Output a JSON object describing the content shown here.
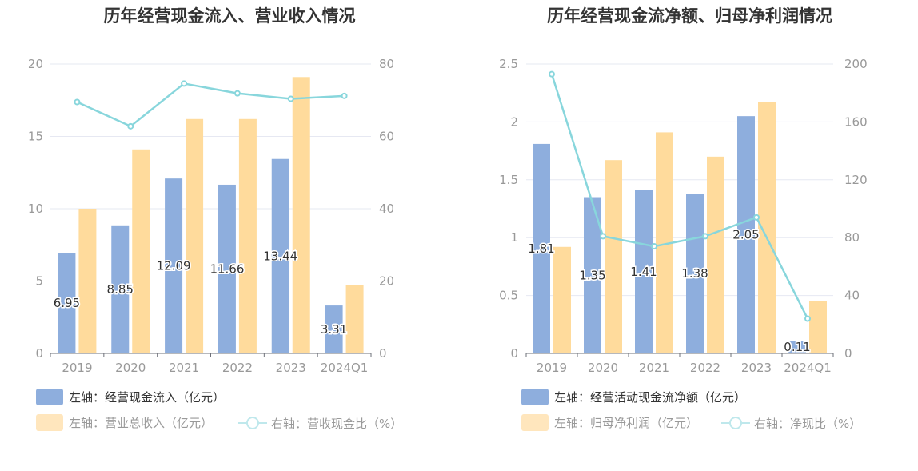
{
  "chart_data": [
    {
      "type": "bar+line",
      "title": "历年经营现金流入、营业收入情况",
      "categories": [
        "2019",
        "2020",
        "2021",
        "2022",
        "2023",
        "2024Q1"
      ],
      "y_left": {
        "min": 0,
        "max": 20,
        "ticks": [
          "0",
          "5",
          "10",
          "15",
          "20"
        ]
      },
      "y_right": {
        "min": 0,
        "max": 80,
        "ticks": [
          "0",
          "20",
          "40",
          "60",
          "80"
        ]
      },
      "series": [
        {
          "name": "左轴：经营现金流入（亿元）",
          "axis": "left",
          "kind": "bar",
          "color": "#8eaedd",
          "values": [
            6.95,
            8.85,
            12.09,
            11.66,
            13.44,
            3.31
          ],
          "labels": [
            "6.95",
            "8.85",
            "12.09",
            "11.66",
            "13.44",
            "3.31"
          ]
        },
        {
          "name": "左轴：营业总收入（亿元）",
          "axis": "left",
          "kind": "bar",
          "color": "#ffdb9c",
          "values": [
            10.0,
            14.1,
            16.2,
            16.2,
            19.1,
            4.7
          ]
        },
        {
          "name": "右轴：营收现金比（%）",
          "axis": "right",
          "kind": "line",
          "color": "#88d6dc",
          "values": [
            69.5,
            62.8,
            74.6,
            71.9,
            70.4,
            71.2
          ]
        }
      ]
    },
    {
      "type": "bar+line",
      "title": "历年经营现金流净额、归母净利润情况",
      "categories": [
        "2019",
        "2020",
        "2021",
        "2022",
        "2023",
        "2024Q1"
      ],
      "y_left": {
        "min": 0,
        "max": 2.5,
        "ticks": [
          "0",
          "0.5",
          "1",
          "1.5",
          "2",
          "2.5"
        ]
      },
      "y_right": {
        "min": 0,
        "max": 200,
        "ticks": [
          "0",
          "40",
          "80",
          "120",
          "160",
          "200"
        ]
      },
      "series": [
        {
          "name": "左轴：经营活动现金流净额（亿元）",
          "axis": "left",
          "kind": "bar",
          "color": "#8eaedd",
          "values": [
            1.81,
            1.35,
            1.41,
            1.38,
            2.05,
            0.11
          ],
          "labels": [
            "1.81",
            "1.35",
            "1.41",
            "1.38",
            "2.05",
            "0.11"
          ]
        },
        {
          "name": "左轴：归母净利润（亿元）",
          "axis": "left",
          "kind": "bar",
          "color": "#ffdb9c",
          "values": [
            0.92,
            1.67,
            1.91,
            1.7,
            2.17,
            0.45
          ]
        },
        {
          "name": "右轴：净现比（%）",
          "axis": "right",
          "kind": "line",
          "color": "#88d6dc",
          "values": [
            193,
            81,
            74,
            81,
            94,
            24
          ]
        }
      ]
    }
  ]
}
